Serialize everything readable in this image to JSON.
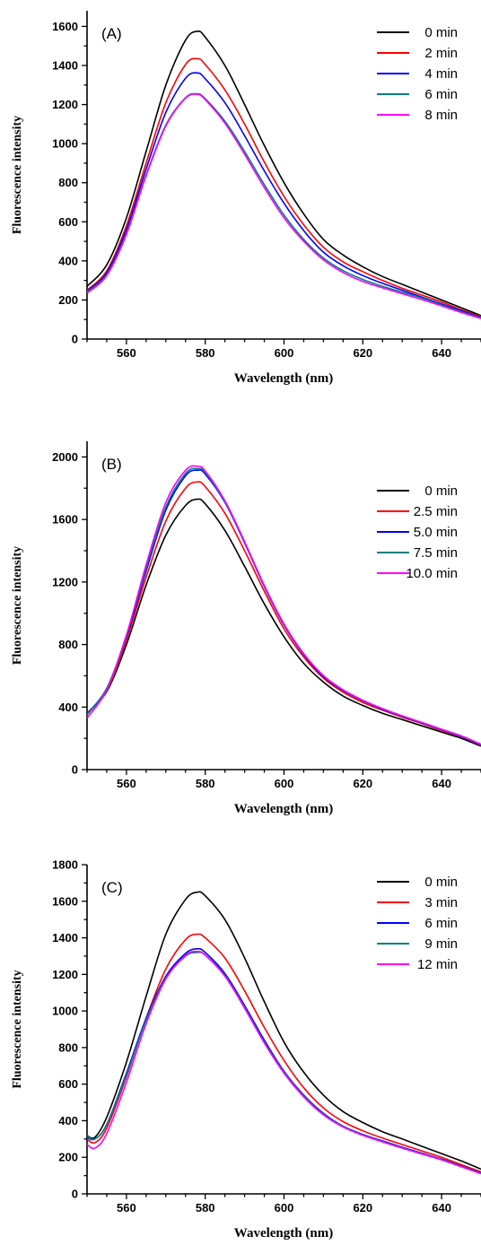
{
  "chart_data": [
    {
      "type": "line",
      "panel_label": "(A)",
      "xlabel": "Wavelength (nm)",
      "ylabel": "Fluorescence intensity",
      "xlim": [
        550,
        650
      ],
      "ylim": [
        0,
        1680
      ],
      "xticks": [
        560,
        580,
        600,
        620,
        640
      ],
      "yticks": [
        0,
        200,
        400,
        600,
        800,
        1000,
        1200,
        1400,
        1600
      ],
      "grid": false,
      "legend_position": "top-right",
      "x": [
        550,
        555,
        560,
        565,
        570,
        575,
        578,
        580,
        585,
        590,
        595,
        600,
        605,
        610,
        615,
        620,
        625,
        630,
        635,
        640,
        645,
        650
      ],
      "series": [
        {
          "name": "0 min",
          "color": "#000000",
          "values": [
            270,
            380,
            620,
            960,
            1300,
            1530,
            1575,
            1545,
            1400,
            1200,
            990,
            800,
            640,
            510,
            430,
            370,
            320,
            280,
            240,
            200,
            160,
            120
          ]
        },
        {
          "name": "2 min",
          "color": "#ff0000",
          "values": [
            250,
            350,
            580,
            900,
            1210,
            1405,
            1435,
            1405,
            1275,
            1100,
            905,
            730,
            585,
            470,
            395,
            345,
            300,
            260,
            225,
            190,
            150,
            115
          ]
        },
        {
          "name": "4 min",
          "color": "#0000ff",
          "values": [
            245,
            340,
            560,
            870,
            1160,
            1335,
            1362,
            1332,
            1210,
            1040,
            860,
            695,
            555,
            445,
            375,
            325,
            285,
            250,
            215,
            180,
            145,
            110
          ]
        },
        {
          "name": "6 min",
          "color": "#008080",
          "values": [
            240,
            330,
            540,
            840,
            1095,
            1235,
            1255,
            1230,
            1115,
            960,
            790,
            635,
            510,
            415,
            350,
            305,
            270,
            240,
            210,
            175,
            140,
            108
          ]
        },
        {
          "name": "8 min",
          "color": "#ff00ff",
          "values": [
            235,
            325,
            535,
            835,
            1090,
            1232,
            1252,
            1225,
            1105,
            945,
            775,
            620,
            500,
            405,
            340,
            295,
            262,
            232,
            202,
            170,
            136,
            105
          ]
        }
      ]
    },
    {
      "type": "line",
      "panel_label": "(B)",
      "xlabel": "Wavelength (nm)",
      "ylabel": "Fluorescence intensity",
      "xlim": [
        550,
        650
      ],
      "ylim": [
        0,
        2100
      ],
      "xticks": [
        560,
        580,
        600,
        620,
        640
      ],
      "yticks": [
        0,
        400,
        800,
        1200,
        1600,
        2000
      ],
      "grid": false,
      "legend_position": "top-right",
      "x": [
        550,
        555,
        560,
        565,
        570,
        575,
        578,
        580,
        585,
        590,
        595,
        600,
        605,
        610,
        615,
        620,
        625,
        630,
        635,
        640,
        645,
        650
      ],
      "series": [
        {
          "name": "0 min",
          "color": "#000000",
          "values": [
            360,
            500,
            800,
            1180,
            1500,
            1690,
            1730,
            1700,
            1530,
            1300,
            1060,
            850,
            680,
            560,
            470,
            410,
            360,
            320,
            280,
            240,
            200,
            150
          ]
        },
        {
          "name": "2.5 min",
          "color": "#ff0000",
          "values": [
            360,
            510,
            830,
            1230,
            1590,
            1800,
            1840,
            1810,
            1640,
            1400,
            1140,
            900,
            720,
            585,
            495,
            430,
            380,
            335,
            295,
            250,
            210,
            155
          ]
        },
        {
          "name": "5.0 min",
          "color": "#0000ff",
          "values": [
            355,
            520,
            850,
            1270,
            1660,
            1880,
            1915,
            1890,
            1710,
            1450,
            1170,
            925,
            735,
            595,
            505,
            440,
            385,
            340,
            298,
            255,
            212,
            158
          ]
        },
        {
          "name": "7.5 min",
          "color": "#008080",
          "values": [
            350,
            520,
            860,
            1290,
            1680,
            1895,
            1925,
            1900,
            1715,
            1455,
            1175,
            930,
            740,
            600,
            508,
            442,
            388,
            342,
            300,
            256,
            214,
            160
          ]
        },
        {
          "name": "10.0 min",
          "color": "#ff00ff",
          "values": [
            330,
            510,
            860,
            1310,
            1710,
            1915,
            1940,
            1910,
            1720,
            1458,
            1178,
            932,
            742,
            602,
            510,
            444,
            390,
            344,
            302,
            258,
            216,
            162
          ]
        }
      ]
    },
    {
      "type": "line",
      "panel_label": "(C)",
      "xlabel": "Wavelength (nm)",
      "ylabel": "Fluorescence intensity",
      "xlim": [
        550,
        650
      ],
      "ylim": [
        0,
        1800
      ],
      "xticks": [
        560,
        580,
        600,
        620,
        640
      ],
      "yticks": [
        0,
        200,
        400,
        600,
        800,
        1000,
        1200,
        1400,
        1600,
        1800
      ],
      "grid": false,
      "legend_position": "top-right",
      "x": [
        550,
        552,
        555,
        560,
        565,
        570,
        575,
        578,
        580,
        585,
        590,
        595,
        600,
        605,
        610,
        615,
        620,
        625,
        630,
        635,
        640,
        645,
        650
      ],
      "series": [
        {
          "name": "0 min",
          "color": "#000000",
          "values": [
            320,
            310,
            420,
            720,
            1080,
            1420,
            1610,
            1650,
            1630,
            1500,
            1290,
            1050,
            830,
            665,
            540,
            450,
            390,
            340,
            300,
            260,
            220,
            180,
            135
          ]
        },
        {
          "name": "3 min",
          "color": "#ff0000",
          "values": [
            300,
            280,
            360,
            640,
            960,
            1230,
            1390,
            1420,
            1400,
            1290,
            1110,
            910,
            730,
            580,
            470,
            395,
            345,
            305,
            270,
            235,
            200,
            160,
            120
          ]
        },
        {
          "name": "6 min",
          "color": "#0000ff",
          "values": [
            310,
            300,
            380,
            660,
            960,
            1190,
            1315,
            1340,
            1320,
            1205,
            1030,
            840,
            670,
            540,
            440,
            370,
            325,
            290,
            255,
            222,
            190,
            152,
            115
          ]
        },
        {
          "name": "9 min",
          "color": "#008080",
          "values": [
            320,
            300,
            380,
            650,
            950,
            1180,
            1300,
            1320,
            1305,
            1195,
            1020,
            830,
            665,
            535,
            435,
            368,
            322,
            287,
            252,
            220,
            188,
            150,
            113
          ]
        },
        {
          "name": "12 min",
          "color": "#ff00ff",
          "values": [
            270,
            250,
            330,
            610,
            930,
            1175,
            1305,
            1325,
            1305,
            1190,
            1015,
            825,
            660,
            530,
            432,
            365,
            320,
            284,
            250,
            218,
            186,
            148,
            110
          ]
        }
      ]
    }
  ]
}
